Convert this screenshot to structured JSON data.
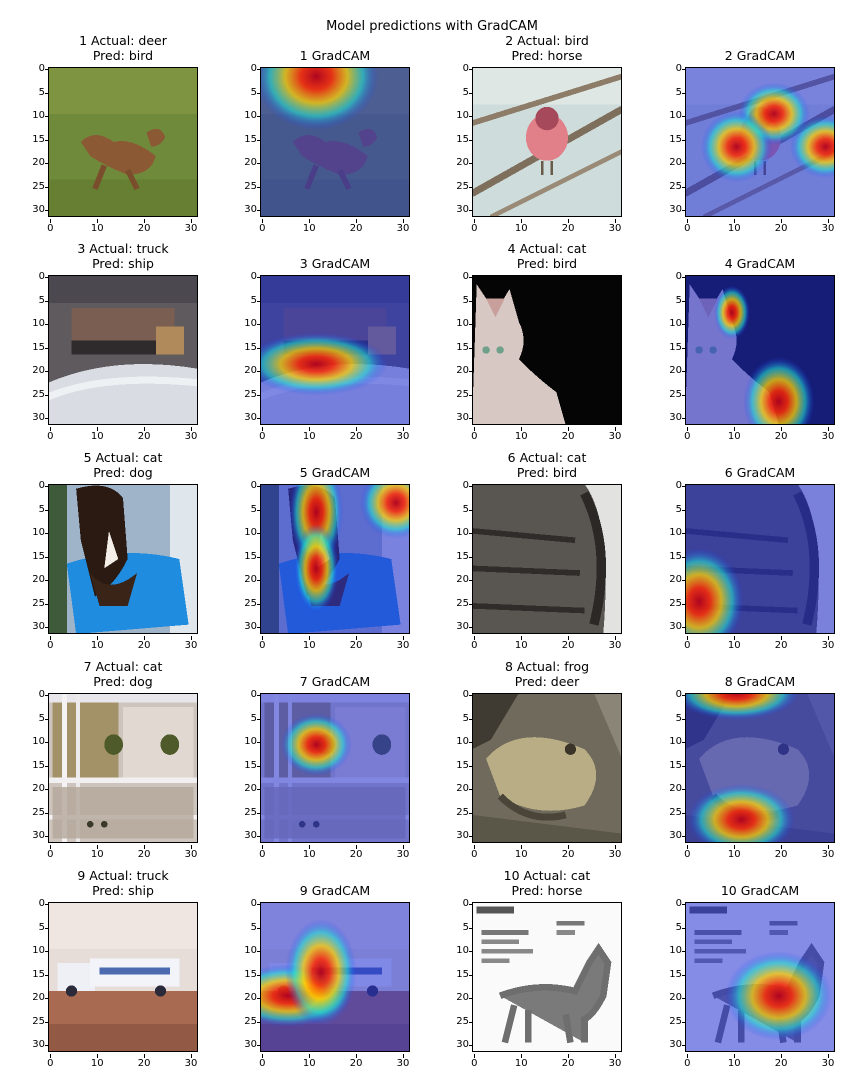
{
  "title": "Model predictions with GradCAM",
  "axis": {
    "xticks": [
      "0",
      "10",
      "20",
      "30"
    ],
    "yticks": [
      "0",
      "5",
      "10",
      "15",
      "20",
      "25",
      "30"
    ]
  },
  "panels": [
    {
      "title_line1": "1 Actual: deer",
      "title_line2": "Pred: bird",
      "kind": "image",
      "scene": "deer"
    },
    {
      "title_line1": "1 GradCAM",
      "title_line2": "",
      "kind": "gradcam",
      "scene": "deer"
    },
    {
      "title_line1": "2 Actual: bird",
      "title_line2": "Pred: horse",
      "kind": "image",
      "scene": "bird"
    },
    {
      "title_line1": "2 GradCAM",
      "title_line2": "",
      "kind": "gradcam",
      "scene": "bird"
    },
    {
      "title_line1": "3 Actual: truck",
      "title_line2": "Pred: ship",
      "kind": "image",
      "scene": "truck-snow"
    },
    {
      "title_line1": "3 GradCAM",
      "title_line2": "",
      "kind": "gradcam",
      "scene": "truck-snow"
    },
    {
      "title_line1": "4 Actual: cat",
      "title_line2": "Pred: bird",
      "kind": "image",
      "scene": "cat-black"
    },
    {
      "title_line1": "4 GradCAM",
      "title_line2": "",
      "kind": "gradcam",
      "scene": "cat-black"
    },
    {
      "title_line1": "5 Actual: cat",
      "title_line2": "Pred: dog",
      "kind": "image",
      "scene": "cat-blue"
    },
    {
      "title_line1": "5 GradCAM",
      "title_line2": "",
      "kind": "gradcam",
      "scene": "cat-blue"
    },
    {
      "title_line1": "6 Actual: cat",
      "title_line2": "Pred: bird",
      "kind": "image",
      "scene": "cat-grey"
    },
    {
      "title_line1": "6 GradCAM",
      "title_line2": "",
      "kind": "gradcam",
      "scene": "cat-grey"
    },
    {
      "title_line1": "7 Actual: cat",
      "title_line2": "Pred: dog",
      "kind": "image",
      "scene": "cat-window"
    },
    {
      "title_line1": "7 GradCAM",
      "title_line2": "",
      "kind": "gradcam",
      "scene": "cat-window"
    },
    {
      "title_line1": "8 Actual: frog",
      "title_line2": "Pred: deer",
      "kind": "image",
      "scene": "frog"
    },
    {
      "title_line1": "8 GradCAM",
      "title_line2": "",
      "kind": "gradcam",
      "scene": "frog"
    },
    {
      "title_line1": "9 Actual: truck",
      "title_line2": "Pred: ship",
      "kind": "image",
      "scene": "truck-room"
    },
    {
      "title_line1": "9 GradCAM",
      "title_line2": "",
      "kind": "gradcam",
      "scene": "truck-room"
    },
    {
      "title_line1": "10 Actual: cat",
      "title_line2": "Pred: horse",
      "kind": "image",
      "scene": "cat-paper"
    },
    {
      "title_line1": "10 GradCAM",
      "title_line2": "",
      "kind": "gradcam",
      "scene": "cat-paper"
    }
  ]
}
